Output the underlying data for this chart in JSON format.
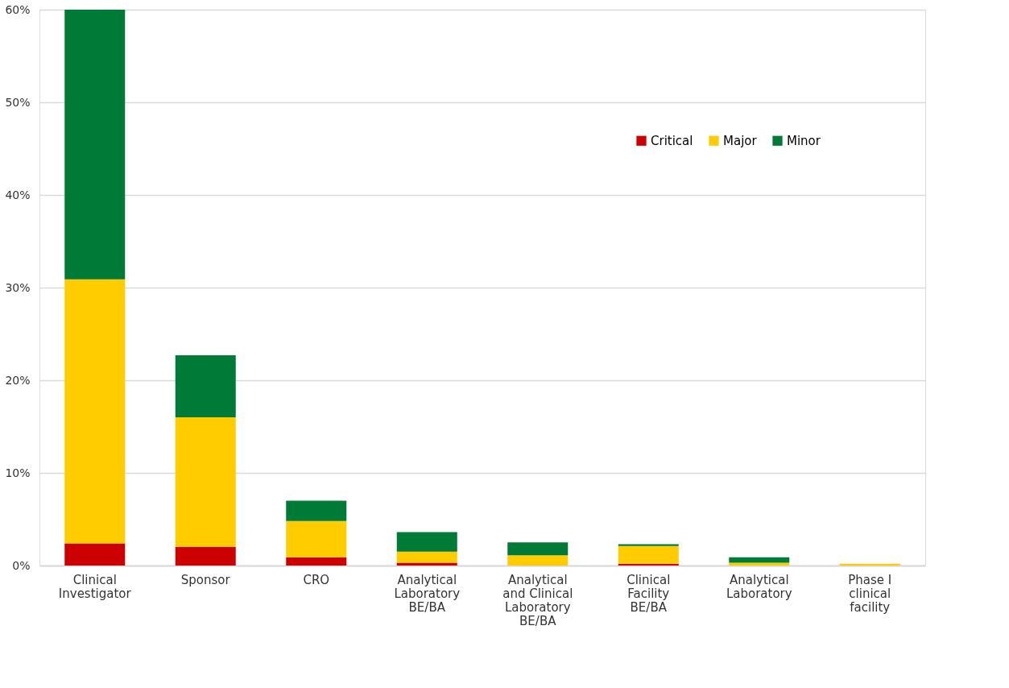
{
  "chart_data": {
    "type": "bar",
    "stacked": true,
    "categories": [
      "Clinical Investigator",
      "Sponsor",
      "CRO",
      "Analytical Laboratory BE/BA",
      "Analytical and Clinical Laboratory BE/BA",
      "Clinical Facility BE/BA",
      "Analytical Laboratory",
      "Phase I clinical facility"
    ],
    "series": [
      {
        "name": "Critical",
        "color": "#cc0000",
        "values": [
          2.4,
          2.0,
          0.9,
          0.3,
          0,
          0.2,
          0,
          0
        ]
      },
      {
        "name": "Major",
        "color": "#ffcc00",
        "values": [
          28.5,
          14.0,
          3.9,
          1.2,
          1.1,
          1.9,
          0.3,
          0.2
        ]
      },
      {
        "name": "Minor",
        "color": "#007a37",
        "values": [
          29.1,
          6.7,
          2.2,
          2.1,
          1.4,
          0.2,
          0.6,
          0
        ]
      }
    ],
    "ylim": [
      0,
      60
    ],
    "yticks": [
      {
        "value": 0,
        "label": "0%"
      },
      {
        "value": 10,
        "label": "10%"
      },
      {
        "value": 20,
        "label": "20%"
      },
      {
        "value": 30,
        "label": "30%"
      },
      {
        "value": 40,
        "label": "40%"
      },
      {
        "value": 50,
        "label": "50%"
      },
      {
        "value": 60,
        "label": "60%"
      }
    ],
    "grid": "y",
    "legend": "top right"
  }
}
